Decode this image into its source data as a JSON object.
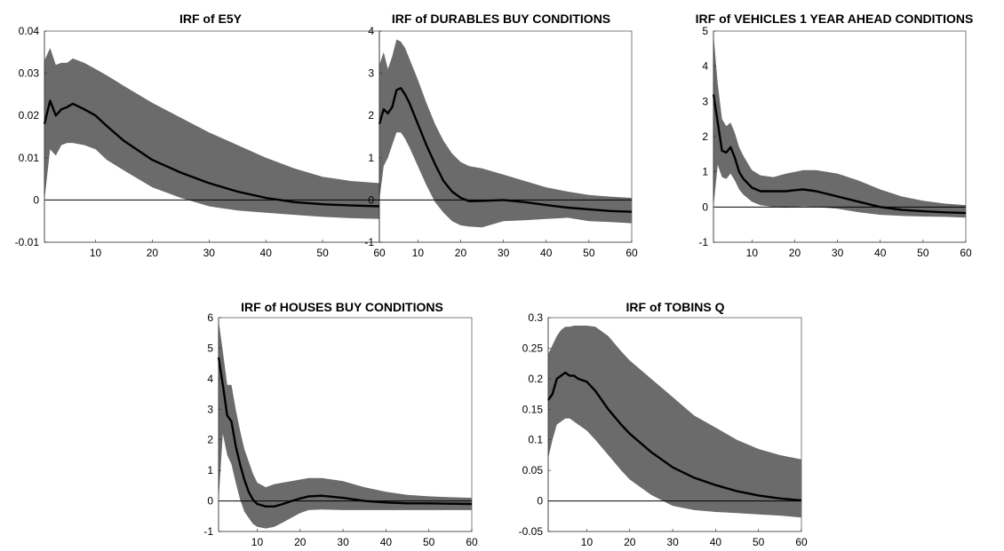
{
  "figure": {
    "band_color": "#6b6b6b",
    "line_color": "#000000"
  },
  "chart_data": [
    {
      "type": "area",
      "title": "IRF of E5Y",
      "xlabel": "",
      "ylabel": "",
      "xlim": [
        1,
        60
      ],
      "ylim": [
        -0.01,
        0.04
      ],
      "xticks": [
        10,
        20,
        30,
        40,
        50,
        60
      ],
      "yticks": [
        -0.01,
        0,
        0.01,
        0.02,
        0.03,
        0.04
      ],
      "ytick_labels": [
        "-0.01",
        "0",
        "0.01",
        "0.02",
        "0.03",
        "0.04"
      ],
      "x": [
        1,
        2,
        3,
        4,
        5,
        6,
        8,
        10,
        12,
        15,
        20,
        25,
        30,
        35,
        40,
        45,
        50,
        55,
        60
      ],
      "irf": [
        0.018,
        0.0235,
        0.02,
        0.0215,
        0.022,
        0.0228,
        0.0215,
        0.02,
        0.0175,
        0.014,
        0.0095,
        0.0065,
        0.004,
        0.002,
        0.0005,
        -0.0005,
        -0.001,
        -0.0013,
        -0.0015
      ],
      "upper": [
        0.033,
        0.036,
        0.032,
        0.0325,
        0.0325,
        0.0335,
        0.0325,
        0.031,
        0.0295,
        0.027,
        0.023,
        0.0195,
        0.016,
        0.013,
        0.01,
        0.0075,
        0.0055,
        0.0045,
        0.004
      ],
      "lower": [
        0.0,
        0.012,
        0.0105,
        0.013,
        0.0135,
        0.0135,
        0.013,
        0.012,
        0.0095,
        0.007,
        0.003,
        0.0005,
        -0.0015,
        -0.0025,
        -0.003,
        -0.0035,
        -0.004,
        -0.0043,
        -0.0045
      ]
    },
    {
      "type": "area",
      "title": "IRF of DURABLES BUY CONDITIONS",
      "xlabel": "",
      "ylabel": "",
      "xlim": [
        1,
        60
      ],
      "ylim": [
        -1,
        4
      ],
      "xticks": [
        10,
        20,
        30,
        40,
        50,
        60
      ],
      "yticks": [
        -1,
        0,
        1,
        2,
        3,
        4
      ],
      "ytick_labels": [
        "-1",
        "0",
        "1",
        "2",
        "3",
        "4"
      ],
      "x": [
        1,
        2,
        3,
        4,
        5,
        6,
        7,
        8,
        10,
        12,
        14,
        16,
        18,
        20,
        22,
        25,
        30,
        35,
        40,
        45,
        50,
        55,
        60
      ],
      "irf": [
        1.8,
        2.15,
        2.05,
        2.2,
        2.6,
        2.65,
        2.5,
        2.3,
        1.8,
        1.3,
        0.85,
        0.45,
        0.2,
        0.05,
        -0.03,
        -0.02,
        0.0,
        -0.05,
        -0.12,
        -0.18,
        -0.22,
        -0.26,
        -0.28
      ],
      "upper": [
        3.2,
        3.5,
        3.1,
        3.4,
        3.8,
        3.75,
        3.6,
        3.35,
        2.85,
        2.3,
        1.8,
        1.4,
        1.1,
        0.9,
        0.8,
        0.75,
        0.6,
        0.45,
        0.3,
        0.2,
        0.12,
        0.08,
        0.05
      ],
      "lower": [
        0.0,
        0.8,
        1.0,
        1.3,
        1.6,
        1.6,
        1.45,
        1.25,
        0.8,
        0.35,
        -0.05,
        -0.3,
        -0.5,
        -0.6,
        -0.63,
        -0.65,
        -0.5,
        -0.48,
        -0.45,
        -0.42,
        -0.5,
        -0.52,
        -0.55
      ]
    },
    {
      "type": "area",
      "title": "IRF of VEHICLES  1 YEAR AHEAD CONDITIONS",
      "xlabel": "",
      "ylabel": "",
      "xlim": [
        1,
        60
      ],
      "ylim": [
        -1,
        5
      ],
      "xticks": [
        10,
        20,
        30,
        40,
        50,
        60
      ],
      "yticks": [
        -1,
        0,
        1,
        2,
        3,
        4,
        5
      ],
      "ytick_labels": [
        "-1",
        "0",
        "1",
        "2",
        "3",
        "4",
        "5"
      ],
      "x": [
        1,
        2,
        3,
        4,
        5,
        6,
        7,
        8,
        10,
        12,
        15,
        18,
        20,
        22,
        25,
        30,
        35,
        40,
        45,
        50,
        55,
        60
      ],
      "irf": [
        3.2,
        2.4,
        1.6,
        1.55,
        1.7,
        1.4,
        1.0,
        0.8,
        0.55,
        0.45,
        0.45,
        0.45,
        0.48,
        0.5,
        0.45,
        0.3,
        0.15,
        0.0,
        -0.08,
        -0.12,
        -0.15,
        -0.17
      ],
      "upper": [
        4.9,
        3.5,
        2.5,
        2.3,
        2.4,
        2.1,
        1.7,
        1.45,
        1.05,
        0.9,
        0.85,
        0.95,
        1.0,
        1.05,
        1.05,
        0.95,
        0.75,
        0.5,
        0.3,
        0.18,
        0.1,
        0.05
      ],
      "lower": [
        0.0,
        1.2,
        0.85,
        0.8,
        0.95,
        0.75,
        0.5,
        0.35,
        0.15,
        0.05,
        0.0,
        -0.02,
        0.0,
        0.02,
        0.0,
        -0.05,
        -0.15,
        -0.22,
        -0.25,
        -0.27,
        -0.28,
        -0.3
      ]
    },
    {
      "type": "area",
      "title": "IRF of HOUSES BUY CONDITIONS",
      "xlabel": "",
      "ylabel": "",
      "xlim": [
        1,
        60
      ],
      "ylim": [
        -1,
        6
      ],
      "xticks": [
        10,
        20,
        30,
        40,
        50,
        60
      ],
      "yticks": [
        -1,
        0,
        1,
        2,
        3,
        4,
        5,
        6
      ],
      "ytick_labels": [
        "-1",
        "0",
        "1",
        "2",
        "3",
        "4",
        "5",
        "6"
      ],
      "x": [
        1,
        2,
        3,
        4,
        5,
        6,
        7,
        8,
        9,
        10,
        12,
        14,
        16,
        18,
        20,
        22,
        25,
        30,
        35,
        40,
        45,
        50,
        55,
        60
      ],
      "irf": [
        4.7,
        3.8,
        2.8,
        2.6,
        1.8,
        1.2,
        0.7,
        0.3,
        0.05,
        -0.1,
        -0.18,
        -0.18,
        -0.1,
        0.0,
        0.08,
        0.15,
        0.17,
        0.1,
        0.0,
        -0.05,
        -0.08,
        -0.08,
        -0.09,
        -0.1
      ],
      "upper": [
        5.9,
        4.9,
        3.8,
        3.8,
        3.0,
        2.3,
        1.7,
        1.3,
        0.9,
        0.6,
        0.45,
        0.55,
        0.6,
        0.65,
        0.7,
        0.75,
        0.75,
        0.65,
        0.45,
        0.3,
        0.2,
        0.15,
        0.12,
        0.1
      ],
      "lower": [
        0.0,
        2.2,
        1.5,
        1.2,
        0.6,
        0.05,
        -0.35,
        -0.55,
        -0.75,
        -0.85,
        -0.9,
        -0.85,
        -0.7,
        -0.55,
        -0.4,
        -0.3,
        -0.28,
        -0.3,
        -0.3,
        -0.3,
        -0.3,
        -0.3,
        -0.3,
        -0.3
      ]
    },
    {
      "type": "area",
      "title": "IRF of TOBINS Q",
      "xlabel": "",
      "ylabel": "",
      "xlim": [
        1,
        60
      ],
      "ylim": [
        -0.05,
        0.3
      ],
      "xticks": [
        10,
        20,
        30,
        40,
        50,
        60
      ],
      "yticks": [
        -0.05,
        0,
        0.05,
        0.1,
        0.15,
        0.2,
        0.25,
        0.3
      ],
      "ytick_labels": [
        "-0.05",
        "0",
        "0.05",
        "0.1",
        "0.15",
        "0.2",
        "0.25",
        "0.3"
      ],
      "x": [
        1,
        2,
        3,
        4,
        5,
        6,
        7,
        8,
        10,
        12,
        15,
        18,
        20,
        25,
        30,
        35,
        40,
        45,
        50,
        55,
        60
      ],
      "irf": [
        0.165,
        0.175,
        0.2,
        0.205,
        0.21,
        0.205,
        0.205,
        0.2,
        0.195,
        0.18,
        0.15,
        0.125,
        0.11,
        0.08,
        0.055,
        0.038,
        0.026,
        0.016,
        0.009,
        0.004,
        0.001
      ],
      "upper": [
        0.24,
        0.255,
        0.27,
        0.28,
        0.285,
        0.285,
        0.287,
        0.287,
        0.287,
        0.285,
        0.27,
        0.245,
        0.23,
        0.2,
        0.17,
        0.14,
        0.12,
        0.1,
        0.085,
        0.075,
        0.068
      ],
      "lower": [
        0.07,
        0.1,
        0.125,
        0.13,
        0.135,
        0.135,
        0.13,
        0.125,
        0.115,
        0.1,
        0.075,
        0.05,
        0.035,
        0.01,
        -0.008,
        -0.015,
        -0.018,
        -0.02,
        -0.022,
        -0.024,
        -0.027
      ]
    }
  ]
}
